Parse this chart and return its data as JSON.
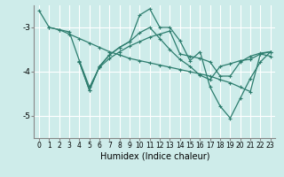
{
  "xlabel": "Humidex (Indice chaleur)",
  "background_color": "#ceecea",
  "grid_color": "#ffffff",
  "line_color": "#2d7d6e",
  "xlim": [
    -0.5,
    23.5
  ],
  "ylim": [
    -5.5,
    -2.5
  ],
  "yticks": [
    -5,
    -4,
    -3
  ],
  "xticks": [
    0,
    1,
    2,
    3,
    4,
    5,
    6,
    7,
    8,
    9,
    10,
    11,
    12,
    13,
    14,
    15,
    16,
    17,
    18,
    19,
    20,
    21,
    22,
    23
  ],
  "line1_x": [
    0,
    1,
    2,
    3,
    4,
    5,
    6,
    7,
    8,
    9,
    10,
    11,
    12,
    13,
    14,
    15,
    16,
    17,
    18,
    19,
    20,
    21,
    22,
    23
  ],
  "line1_y": [
    -2.62,
    -3.0,
    -3.05,
    -3.15,
    -3.25,
    -3.35,
    -3.45,
    -3.55,
    -3.62,
    -3.7,
    -3.75,
    -3.8,
    -3.85,
    -3.9,
    -3.95,
    -4.0,
    -4.05,
    -4.1,
    -4.18,
    -4.25,
    -4.35,
    -4.45,
    -3.6,
    -3.65
  ],
  "line2_x": [
    1,
    2,
    3,
    4,
    5,
    6,
    7,
    8,
    9,
    10,
    11,
    12,
    13,
    14,
    15,
    16,
    17,
    18,
    19,
    20,
    21,
    22,
    23
  ],
  "line2_y": [
    -3.0,
    -3.05,
    -3.1,
    -3.75,
    -4.35,
    -3.9,
    -3.7,
    -3.55,
    -3.42,
    -3.32,
    -3.22,
    -3.15,
    -3.08,
    -3.6,
    -3.65,
    -3.7,
    -3.78,
    -4.1,
    -4.1,
    -3.78,
    -3.65,
    -3.58,
    -3.55
  ],
  "line3_x": [
    4,
    5,
    6,
    7,
    8,
    9,
    10,
    11,
    12,
    13,
    14,
    15,
    16,
    17,
    18,
    19,
    20,
    21,
    22,
    23
  ],
  "line3_y": [
    -3.78,
    -4.42,
    -3.88,
    -3.62,
    -3.45,
    -3.32,
    -3.12,
    -3.0,
    -3.25,
    -3.5,
    -3.72,
    -3.88,
    -4.08,
    -4.18,
    -3.88,
    -3.82,
    -3.75,
    -3.72,
    -3.6,
    -3.55
  ],
  "line4_x": [
    4,
    5,
    6,
    7,
    8,
    9,
    10,
    11,
    12,
    13,
    14,
    15,
    16,
    17,
    18,
    19,
    20,
    21,
    22,
    23
  ],
  "line4_y": [
    -3.78,
    -4.42,
    -3.88,
    -3.62,
    -3.45,
    -3.32,
    -2.72,
    -2.58,
    -3.0,
    -3.0,
    -3.3,
    -3.75,
    -3.55,
    -4.35,
    -4.78,
    -5.05,
    -4.6,
    -4.15,
    -3.78,
    -3.55
  ],
  "linewidth": 0.9,
  "markersize": 3,
  "tick_fontsize": 5.5,
  "xlabel_fontsize": 7
}
